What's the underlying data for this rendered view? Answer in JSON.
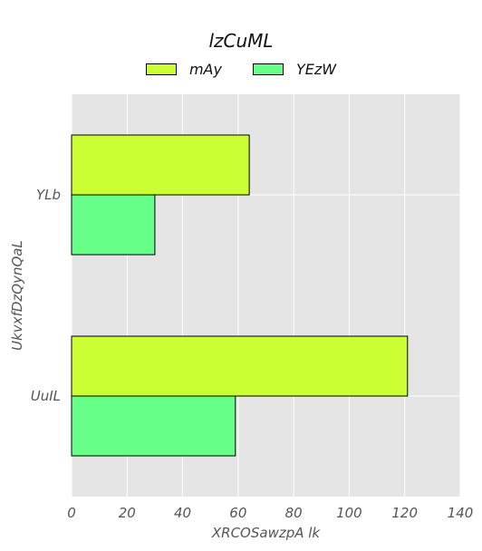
{
  "chart_data": {
    "type": "bar",
    "orientation": "horizontal",
    "title": "lzCuML",
    "xlabel": "XRCOSawzpA lk",
    "ylabel": "UkvxfDzQynQaL",
    "categories": [
      "YLb",
      "UuIL"
    ],
    "series": [
      {
        "name": "mAy",
        "values": [
          64,
          121
        ],
        "color": "#ccff33"
      },
      {
        "name": "YEzW",
        "values": [
          30,
          59
        ],
        "color": "#66ff88"
      }
    ],
    "xlim": [
      0,
      140
    ],
    "xticks": [
      0,
      20,
      40,
      60,
      80,
      100,
      120,
      140
    ],
    "grid": true,
    "legend_position": "top-center",
    "background": "#e5e5e5"
  }
}
